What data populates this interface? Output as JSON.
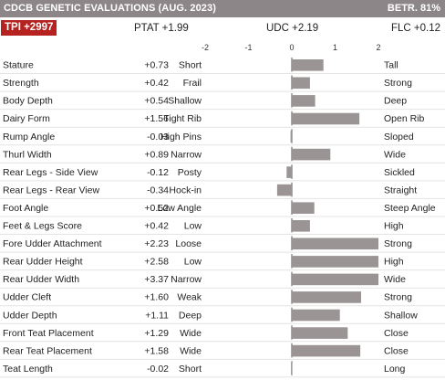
{
  "header": {
    "title": "CDCB GENETIC EVALUATIONS (AUG. 2023)",
    "reliability": "BETR. 81%"
  },
  "summary": {
    "tpi": "TPI +2997",
    "ptat": "PTAT +1.99",
    "udc": "UDC +2.19",
    "flc": "FLC +0.12"
  },
  "colors": {
    "bar": "#9b9495",
    "header": "#8d8688",
    "tpi_badge": "#b5221f",
    "axis": "#555555"
  },
  "chart_data": {
    "type": "bar",
    "orientation": "horizontal",
    "xlim": [
      -2,
      2
    ],
    "ticks": [
      "-2",
      "-1",
      "0",
      "1",
      "2"
    ],
    "tick_values": [
      -2,
      -1,
      0,
      1,
      2
    ],
    "traits": [
      {
        "name": "Stature",
        "value": 0.73,
        "value_label": "+0.73",
        "low": "Short",
        "high": "Tall"
      },
      {
        "name": "Strength",
        "value": 0.42,
        "value_label": "+0.42",
        "low": "Frail",
        "high": "Strong"
      },
      {
        "name": "Body Depth",
        "value": 0.54,
        "value_label": "+0.54",
        "low": "Shallow",
        "high": "Deep"
      },
      {
        "name": "Dairy Form",
        "value": 1.56,
        "value_label": "+1.56",
        "low": "Tight Rib",
        "high": "Open Rib"
      },
      {
        "name": "Rump Angle",
        "value": -0.03,
        "value_label": "-0.03",
        "low": "High Pins",
        "high": "Sloped"
      },
      {
        "name": "Thurl Width",
        "value": 0.89,
        "value_label": "+0.89",
        "low": "Narrow",
        "high": "Wide"
      },
      {
        "name": "Rear Legs - Side View",
        "value": -0.12,
        "value_label": "-0.12",
        "low": "Posty",
        "high": "Sickled"
      },
      {
        "name": "Rear Legs - Rear View",
        "value": -0.34,
        "value_label": "-0.34",
        "low": "Hock-in",
        "high": "Straight"
      },
      {
        "name": "Foot Angle",
        "value": 0.52,
        "value_label": "+0.52",
        "low": "Low Angle",
        "high": "Steep Angle"
      },
      {
        "name": "Feet & Legs Score",
        "value": 0.42,
        "value_label": "+0.42",
        "low": "Low",
        "high": "High"
      },
      {
        "name": "Fore Udder Attachment",
        "value": 2.23,
        "value_label": "+2.23",
        "low": "Loose",
        "high": "Strong"
      },
      {
        "name": "Rear Udder Height",
        "value": 2.58,
        "value_label": "+2.58",
        "low": "Low",
        "high": "High"
      },
      {
        "name": "Rear Udder Width",
        "value": 3.37,
        "value_label": "+3.37",
        "low": "Narrow",
        "high": "Wide"
      },
      {
        "name": "Udder Cleft",
        "value": 1.6,
        "value_label": "+1.60",
        "low": "Weak",
        "high": "Strong"
      },
      {
        "name": "Udder Depth",
        "value": 1.11,
        "value_label": "+1.11",
        "low": "Deep",
        "high": "Shallow"
      },
      {
        "name": "Front Teat Placement",
        "value": 1.29,
        "value_label": "+1.29",
        "low": "Wide",
        "high": "Close"
      },
      {
        "name": "Rear Teat Placement",
        "value": 1.58,
        "value_label": "+1.58",
        "low": "Wide",
        "high": "Close"
      },
      {
        "name": "Teat Length",
        "value": -0.02,
        "value_label": "-0.02",
        "low": "Short",
        "high": "Long"
      }
    ]
  }
}
